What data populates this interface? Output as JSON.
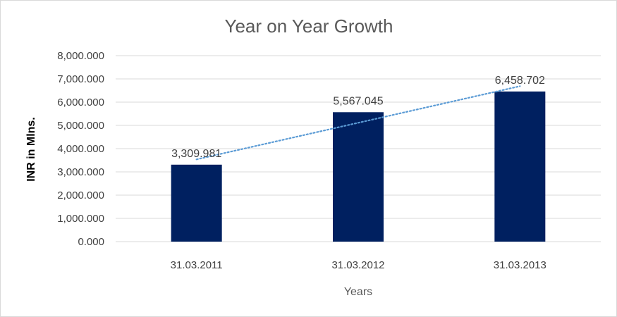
{
  "chart_data": {
    "type": "bar",
    "title": "Year on Year Growth",
    "xlabel": "Years",
    "ylabel": "INR in Mlns.",
    "categories": [
      "31.03.2011",
      "31.03.2012",
      "31.03.2013"
    ],
    "values": [
      3309.981,
      5567.045,
      6458.702
    ],
    "data_labels": [
      "3,309.981",
      "5,567.045",
      "6,458.702"
    ],
    "ylim": [
      0,
      8000
    ],
    "y_ticks": [
      {
        "value": 0,
        "label": "0.000"
      },
      {
        "value": 1000,
        "label": "1,000.000"
      },
      {
        "value": 2000,
        "label": "2,000.000"
      },
      {
        "value": 3000,
        "label": "3,000.000"
      },
      {
        "value": 4000,
        "label": "4,000.000"
      },
      {
        "value": 5000,
        "label": "5,000.000"
      },
      {
        "value": 6000,
        "label": "6,000.000"
      },
      {
        "value": 7000,
        "label": "7,000.000"
      },
      {
        "value": 8000,
        "label": "8,000.000"
      }
    ],
    "grid": true,
    "trendline": "linear",
    "colors": {
      "bar": "#002060",
      "trendline": "#5b9bd5",
      "grid": "#d9d9d9"
    }
  }
}
